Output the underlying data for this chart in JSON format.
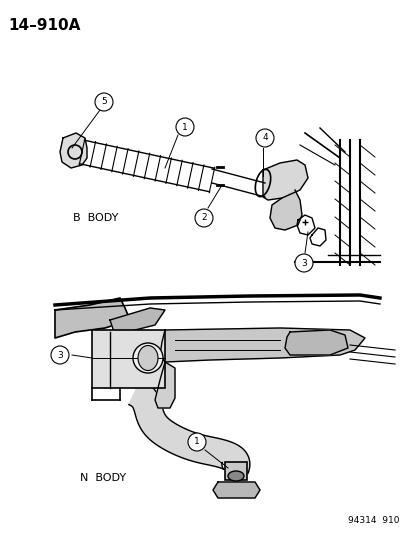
{
  "title": "14–910A",
  "bg_color": "#ffffff",
  "text_color": "#000000",
  "b_body_label": "B  BODY",
  "n_body_label": "N  BODY",
  "footer": "94314  910",
  "fig_width": 4.14,
  "fig_height": 5.33,
  "dpi": 100
}
